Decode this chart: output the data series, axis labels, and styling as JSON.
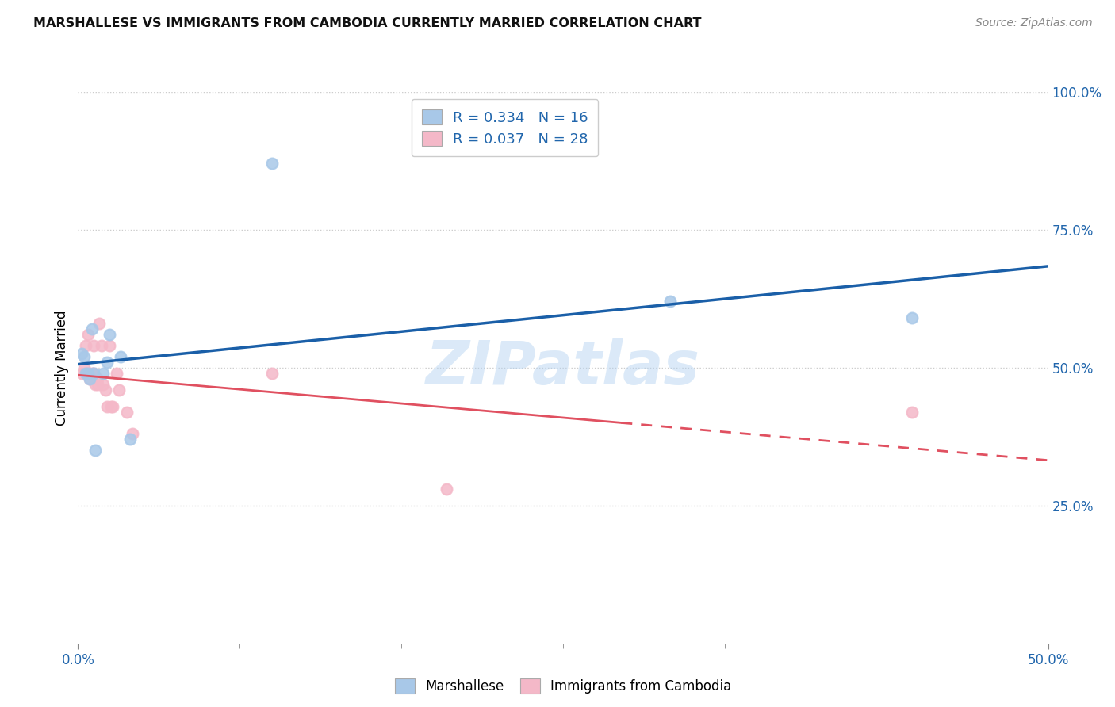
{
  "title": "MARSHALLESE VS IMMIGRANTS FROM CAMBODIA CURRENTLY MARRIED CORRELATION CHART",
  "source": "Source: ZipAtlas.com",
  "xlim": [
    0.0,
    0.5
  ],
  "ylim": [
    0.0,
    1.0
  ],
  "ylabel": "Currently Married",
  "legend1_r": "0.334",
  "legend1_n": "16",
  "legend2_r": "0.037",
  "legend2_n": "28",
  "marshallese_x": [
    0.002,
    0.003,
    0.004,
    0.005,
    0.006,
    0.007,
    0.008,
    0.009,
    0.013,
    0.015,
    0.016,
    0.022,
    0.027,
    0.1,
    0.305,
    0.43
  ],
  "marshallese_y": [
    0.525,
    0.52,
    0.49,
    0.49,
    0.48,
    0.57,
    0.49,
    0.35,
    0.49,
    0.51,
    0.56,
    0.52,
    0.37,
    0.87,
    0.62,
    0.59
  ],
  "cambodia_x": [
    0.002,
    0.003,
    0.004,
    0.004,
    0.005,
    0.005,
    0.006,
    0.007,
    0.008,
    0.008,
    0.009,
    0.01,
    0.01,
    0.011,
    0.012,
    0.013,
    0.014,
    0.015,
    0.016,
    0.017,
    0.018,
    0.02,
    0.021,
    0.025,
    0.028,
    0.1,
    0.19,
    0.43
  ],
  "cambodia_y": [
    0.49,
    0.5,
    0.49,
    0.54,
    0.56,
    0.49,
    0.48,
    0.49,
    0.49,
    0.54,
    0.47,
    0.48,
    0.47,
    0.58,
    0.54,
    0.47,
    0.46,
    0.43,
    0.54,
    0.43,
    0.43,
    0.49,
    0.46,
    0.42,
    0.38,
    0.49,
    0.28,
    0.42
  ],
  "blue_color": "#a8c8e8",
  "pink_color": "#f4b8c8",
  "blue_line_color": "#1a5fa8",
  "pink_line_color": "#e05060",
  "watermark": "ZIPatlas",
  "marker_size": 100,
  "grid_color": "#cccccc",
  "grid_linestyle": "dotted"
}
